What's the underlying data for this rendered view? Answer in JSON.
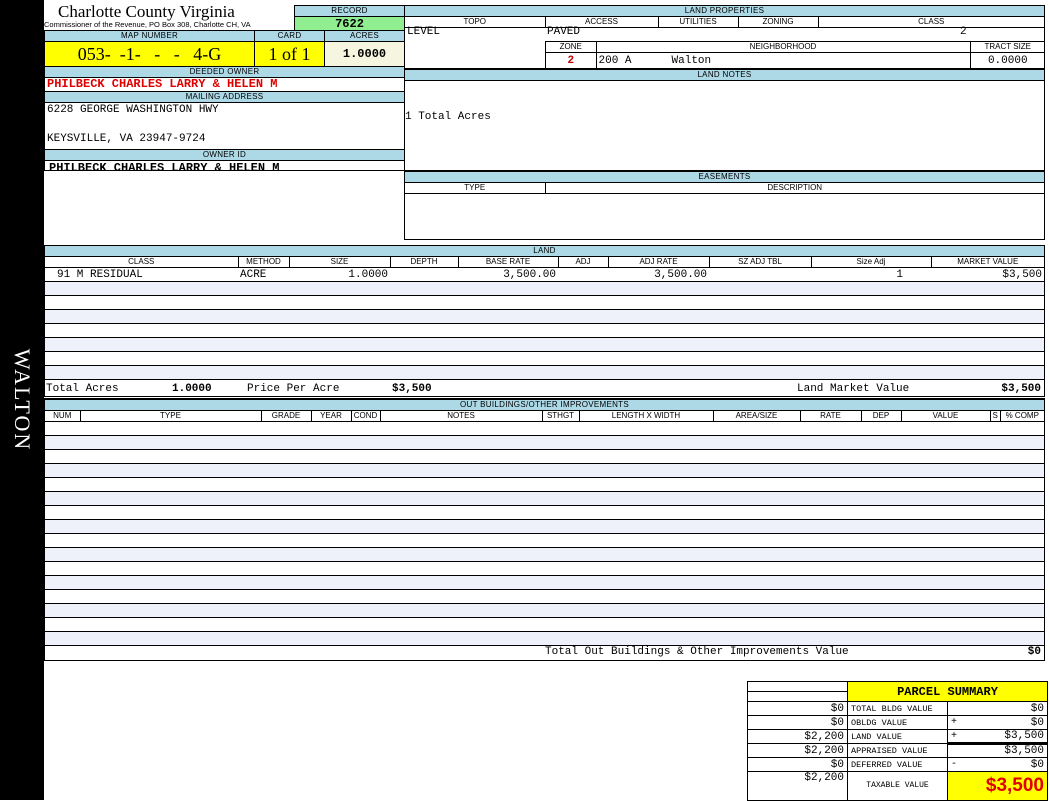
{
  "sidebar": {
    "district": "WALTON"
  },
  "header": {
    "title": "Charlotte County Virginia",
    "subtitle": "Commissioner of the Revenue, PO Box 308, Charlotte CH, VA",
    "record_label": "RECORD",
    "record": "7622"
  },
  "parcel": {
    "map_label": "MAP NUMBER",
    "map_number": "053-  -1-   -   -   4-G",
    "card_label": "CARD",
    "card": "1 of 1",
    "acres_label": "ACRES",
    "acres": "1.0000"
  },
  "owner": {
    "deeded_label": "DEEDED OWNER",
    "deeded": "PHILBECK CHARLES LARRY & HELEN M",
    "mailing_label": "MAILING ADDRESS",
    "address1": "6228 GEORGE WASHINGTON HWY",
    "address2": "KEYSVILLE, VA 23947-9724",
    "owner_id_label": "OWNER ID",
    "owner_id": "PHILBECK CHARLES LARRY & HELEN M"
  },
  "land_properties": {
    "title": "LAND PROPERTIES",
    "headers": [
      "TOPO",
      "ACCESS",
      "UTILITIES",
      "ZONING",
      "CLASS"
    ],
    "topo": "LEVEL",
    "access": "PAVED",
    "class": "2",
    "zone_label": "ZONE",
    "neighborhood_label": "NEIGHBORHOOD",
    "tract_label": "TRACT SIZE",
    "zone": "2",
    "neighborhood_code": "200 A",
    "neighborhood": "Walton",
    "tract_size": "0.0000"
  },
  "land_notes": {
    "title": "LAND NOTES",
    "text": "1 Total Acres"
  },
  "easements": {
    "title": "EASEMENTS",
    "headers": [
      "TYPE",
      "DESCRIPTION"
    ]
  },
  "land": {
    "title": "LAND",
    "headers": [
      "CLASS",
      "METHOD",
      "SIZE",
      "DEPTH",
      "BASE RATE",
      "ADJ",
      "ADJ RATE",
      "SZ ADJ TBL",
      "Size Adj",
      "MARKET VALUE"
    ],
    "rows": [
      [
        "91 M RESIDUAL",
        "ACRE",
        "1.0000",
        "",
        "3,500.00",
        "",
        "3,500.00",
        "",
        "1",
        "$3,500"
      ]
    ],
    "total_acres_label": "Total Acres",
    "total_acres": "1.0000",
    "ppa_label": "Price Per Acre",
    "ppa": "$3,500",
    "lmv_label": "Land Market Value",
    "lmv": "$3,500"
  },
  "outbuildings": {
    "title": "OUT BUILDINGS/OTHER IMPROVEMENTS",
    "headers": [
      "NUM",
      "TYPE",
      "GRADE",
      "YEAR",
      "COND",
      "NOTES",
      "STHGT",
      "LENGTH X WIDTH",
      "AREA/SIZE",
      "RATE",
      "DEP",
      "VALUE",
      "S",
      "% COMP"
    ],
    "total_label": "Total Out Buildings & Other Improvements Value",
    "total": "$0"
  },
  "summary": {
    "title": "PARCEL SUMMARY",
    "rows": [
      {
        "prior": "$0",
        "label": "TOTAL BLDG VALUE",
        "op": "",
        "value": "$0"
      },
      {
        "prior": "$0",
        "label": "OBLDG VALUE",
        "op": "+",
        "value": "$0"
      },
      {
        "prior": "$2,200",
        "label": "LAND VALUE",
        "op": "+",
        "value": "$3,500"
      },
      {
        "prior": "$2,200",
        "label": "APPRAISED VALUE",
        "op": "",
        "value": "$3,500"
      },
      {
        "prior": "$0",
        "label": "DEFERRED VALUE",
        "op": "-",
        "value": "$0"
      }
    ],
    "taxable_prior": "$2,200",
    "taxable_label": "TAXABLE VALUE",
    "taxable": "$3,500"
  }
}
